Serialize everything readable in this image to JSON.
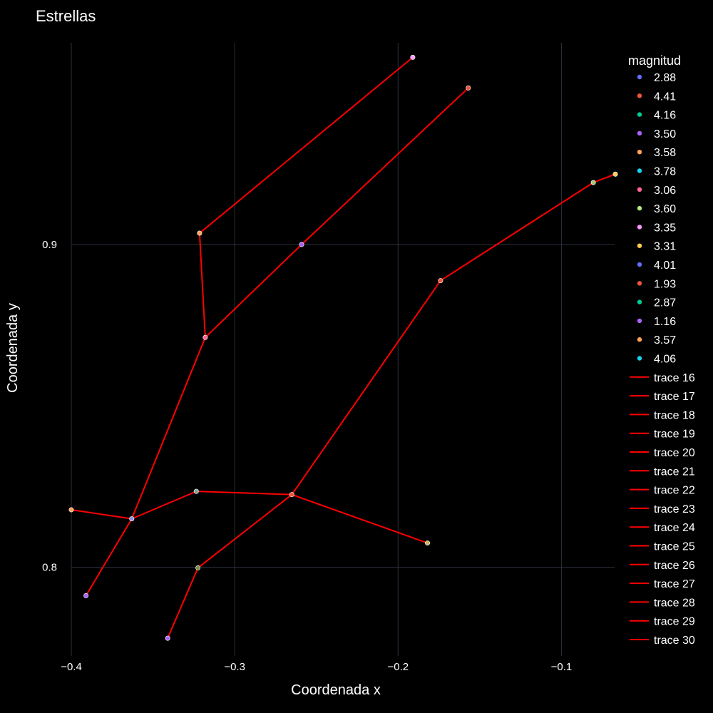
{
  "chart_data": {
    "type": "scatter",
    "title": "Estrellas",
    "xlabel": "Coordenada x",
    "ylabel": "Coordenada y",
    "xlim": [
      -0.4,
      -0.05
    ],
    "ylim": [
      0.7725,
      0.9625
    ],
    "xticks": [
      -0.4,
      -0.3,
      -0.2,
      -0.1
    ],
    "xtick_labels": [
      "−0.4",
      "−0.3",
      "−0.2",
      "−0.1"
    ],
    "yticks": [
      0.8,
      0.9
    ],
    "ytick_labels": [
      "0.8",
      "0.9"
    ],
    "grid": true,
    "legend_title": "magnitud",
    "legend_position": "right",
    "stars": [
      {
        "name": "2.88",
        "x": -0.182,
        "y": 0.8075,
        "color": "#c8b560"
      },
      {
        "name": "4.41",
        "x": -0.265,
        "y": 0.8225,
        "color": "#ef553b"
      },
      {
        "name": "4.16",
        "x": -0.3235,
        "y": 0.8235,
        "color": "#7fa39b"
      },
      {
        "name": "3.50",
        "x": -0.363,
        "y": 0.815,
        "color": "#8b8fe0"
      },
      {
        "name": "3.58",
        "x": -0.4,
        "y": 0.8178,
        "color": "#ffa15a"
      },
      {
        "name": "3.78",
        "x": -0.391,
        "y": 0.7912,
        "color": "#ab63fa"
      },
      {
        "name": "3.06",
        "x": -0.318,
        "y": 0.8712,
        "color": "#ff6692"
      },
      {
        "name": "3.60",
        "x": -0.3215,
        "y": 0.9035,
        "color": "#ffa15a"
      },
      {
        "name": "3.35",
        "x": -0.191,
        "y": 0.958,
        "color": "#ff97ff"
      },
      {
        "name": "3.31",
        "x": -0.259,
        "y": 0.9,
        "color": "#ab63fa"
      },
      {
        "name": "4.01",
        "x": -0.157,
        "y": 0.9485,
        "color": "#ef553b"
      },
      {
        "name": "1.93",
        "x": -0.0805,
        "y": 0.9192,
        "color": "#a4c96f"
      },
      {
        "name": "2.87",
        "x": -0.067,
        "y": 0.9218,
        "color": "#fecb52"
      },
      {
        "name": "1.16",
        "x": -0.174,
        "y": 0.8888,
        "color": "#ef553b"
      },
      {
        "name": "3.57",
        "x": -0.3225,
        "y": 0.7998,
        "color": "#7d8f4e"
      },
      {
        "name": "4.06",
        "x": -0.341,
        "y": 0.778,
        "color": "#ab63fa"
      }
    ],
    "legend_colors": [
      "#636efa",
      "#ef553b",
      "#00cc96",
      "#ab63fa",
      "#ffa15a",
      "#19d3f3",
      "#ff6692",
      "#b6e880",
      "#ff97ff",
      "#fecb52",
      "#636efa",
      "#ef553b",
      "#00cc96",
      "#ab63fa",
      "#ffa15a",
      "#19d3f3"
    ],
    "line_color": "#ff0000",
    "lines": [
      {
        "name": "trace 16",
        "x": [
          -0.182,
          -0.265
        ],
        "y": [
          0.8075,
          0.8225
        ]
      },
      {
        "name": "trace 17",
        "x": [
          -0.265,
          -0.3235
        ],
        "y": [
          0.8225,
          0.8235
        ]
      },
      {
        "name": "trace 18",
        "x": [
          -0.3235,
          -0.363
        ],
        "y": [
          0.8235,
          0.815
        ]
      },
      {
        "name": "trace 19",
        "x": [
          -0.363,
          -0.4
        ],
        "y": [
          0.815,
          0.8178
        ]
      },
      {
        "name": "trace 20",
        "x": [
          -0.363,
          -0.391
        ],
        "y": [
          0.815,
          0.7912
        ]
      },
      {
        "name": "trace 21",
        "x": [
          -0.363,
          -0.318
        ],
        "y": [
          0.815,
          0.8712
        ]
      },
      {
        "name": "trace 22",
        "x": [
          -0.318,
          -0.3215
        ],
        "y": [
          0.8712,
          0.9035
        ]
      },
      {
        "name": "trace 23",
        "x": [
          -0.3215,
          -0.191
        ],
        "y": [
          0.9035,
          0.958
        ]
      },
      {
        "name": "trace 24",
        "x": [
          -0.318,
          -0.259
        ],
        "y": [
          0.8712,
          0.9
        ]
      },
      {
        "name": "trace 25",
        "x": [
          -0.259,
          -0.157
        ],
        "y": [
          0.9,
          0.9485
        ]
      },
      {
        "name": "trace 26",
        "x": [
          -0.265,
          -0.174
        ],
        "y": [
          0.8225,
          0.8888
        ]
      },
      {
        "name": "trace 27",
        "x": [
          -0.174,
          -0.0805
        ],
        "y": [
          0.8888,
          0.9192
        ]
      },
      {
        "name": "trace 28",
        "x": [
          -0.0805,
          -0.067
        ],
        "y": [
          0.9192,
          0.9218
        ]
      },
      {
        "name": "trace 29",
        "x": [
          -0.265,
          -0.3225
        ],
        "y": [
          0.8225,
          0.7998
        ]
      },
      {
        "name": "trace 30",
        "x": [
          -0.3225,
          -0.341
        ],
        "y": [
          0.7998,
          0.778
        ]
      }
    ]
  }
}
